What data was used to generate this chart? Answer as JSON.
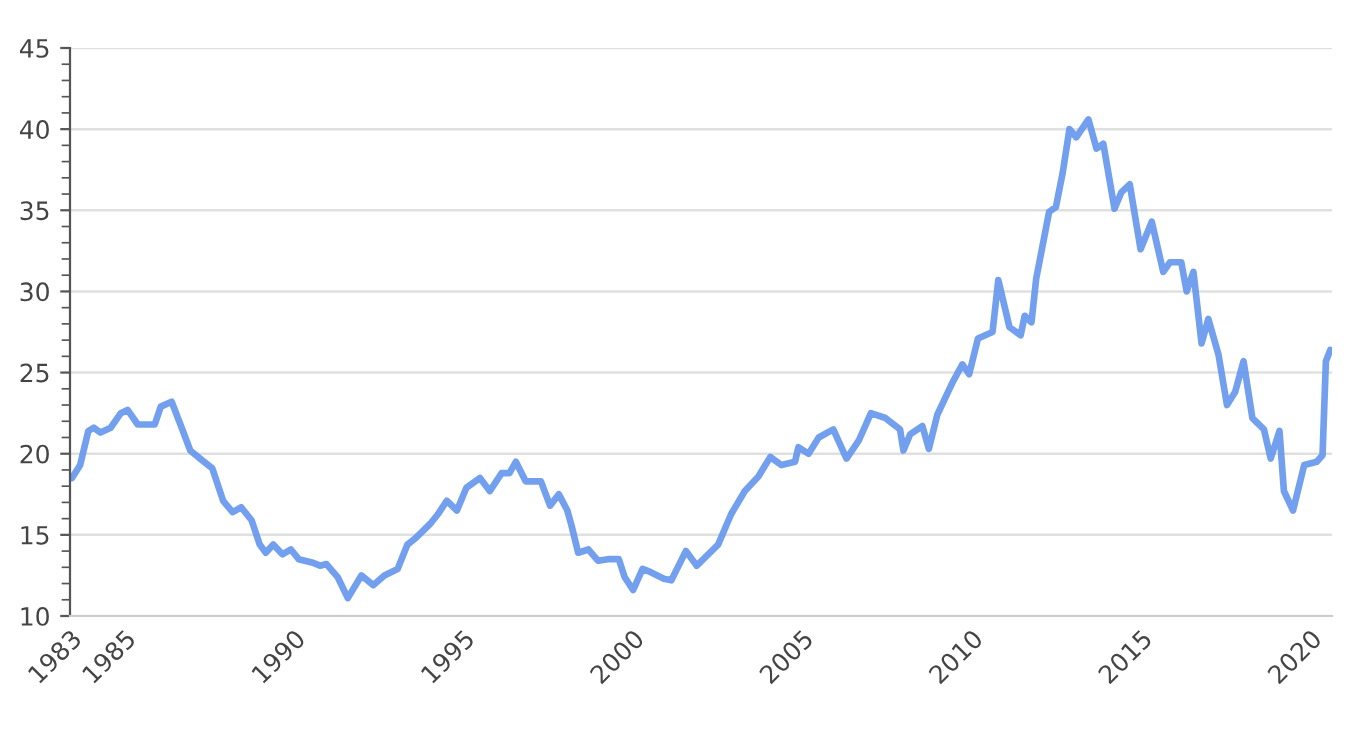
{
  "chart_data": {
    "type": "line",
    "x": [
      1983.46,
      1983.7,
      1983.94,
      1984.1,
      1984.3,
      1984.6,
      1984.9,
      1985.1,
      1985.4,
      1985.6,
      1985.9,
      1986.08,
      1986.4,
      1986.66,
      1986.95,
      1987.24,
      1987.6,
      1987.92,
      1988.2,
      1988.45,
      1988.76,
      1989.0,
      1989.18,
      1989.4,
      1989.67,
      1989.92,
      1990.15,
      1990.54,
      1990.78,
      1990.97,
      1991.3,
      1991.6,
      1992.0,
      1992.35,
      1992.68,
      1993.07,
      1993.36,
      1993.6,
      1994.04,
      1994.27,
      1994.52,
      1994.82,
      1995.1,
      1995.5,
      1995.79,
      1996.14,
      1996.37,
      1996.56,
      1996.85,
      1997.3,
      1997.57,
      1997.83,
      1998.08,
      1998.2,
      1998.4,
      1998.7,
      1998.99,
      1999.28,
      1999.6,
      1999.77,
      2000.02,
      2000.3,
      2000.54,
      2000.93,
      2001.15,
      2001.58,
      2001.9,
      2002.53,
      2002.92,
      2003.32,
      2003.72,
      2004.07,
      2004.4,
      2004.8,
      2004.9,
      2005.2,
      2005.5,
      2005.93,
      2006.32,
      2006.68,
      2007.04,
      2007.47,
      2007.9,
      2008.0,
      2008.2,
      2008.56,
      2008.75,
      2009.0,
      2009.45,
      2009.74,
      2009.94,
      2010.2,
      2010.63,
      2010.8,
      2011.13,
      2011.46,
      2011.58,
      2011.78,
      2011.92,
      2012.3,
      2012.5,
      2012.7,
      2012.9,
      2013.1,
      2013.46,
      2013.7,
      2013.9,
      2014.23,
      2014.43,
      2014.68,
      2015.0,
      2015.33,
      2015.67,
      2015.87,
      2016.2,
      2016.36,
      2016.56,
      2016.8,
      2017.0,
      2017.3,
      2017.55,
      2017.79,
      2018.04,
      2018.3,
      2018.64,
      2018.84,
      2019.1,
      2019.23,
      2019.5,
      2019.83,
      2020.2,
      2020.37,
      2020.47,
      2020.6
    ],
    "series": [
      {
        "color": "#6495ed",
        "values": [
          18.5,
          19.3,
          21.4,
          21.6,
          21.3,
          21.6,
          22.5,
          22.7,
          21.8,
          21.8,
          21.8,
          22.9,
          23.2,
          21.8,
          20.2,
          19.7,
          19.1,
          17.1,
          16.4,
          16.7,
          15.9,
          14.4,
          13.9,
          14.4,
          13.8,
          14.1,
          13.5,
          13.3,
          13.1,
          13.2,
          12.4,
          11.1,
          12.5,
          11.9,
          12.5,
          12.9,
          14.4,
          14.8,
          15.7,
          16.3,
          17.1,
          16.5,
          17.9,
          18.5,
          17.7,
          18.8,
          18.8,
          19.5,
          18.3,
          18.3,
          16.8,
          17.5,
          16.5,
          15.6,
          13.9,
          14.1,
          13.4,
          13.5,
          13.5,
          12.4,
          11.6,
          12.9,
          12.7,
          12.3,
          12.2,
          14.0,
          13.1,
          14.4,
          16.3,
          17.7,
          18.6,
          19.8,
          19.3,
          19.5,
          20.4,
          20.0,
          21.0,
          21.5,
          19.7,
          20.8,
          22.5,
          22.2,
          21.5,
          20.2,
          21.2,
          21.7,
          20.3,
          22.4,
          24.4,
          25.5,
          24.9,
          27.1,
          27.5,
          30.7,
          27.8,
          27.3,
          28.5,
          28.1,
          30.8,
          34.9,
          35.2,
          37.3,
          40.0,
          39.5,
          40.6,
          38.8,
          39.1,
          35.1,
          36.1,
          36.6,
          32.6,
          34.3,
          31.2,
          31.8,
          31.8,
          30.0,
          31.2,
          26.8,
          28.3,
          26.1,
          23.0,
          23.8,
          25.7,
          22.2,
          21.5,
          19.7,
          21.4,
          17.7,
          16.5,
          19.3,
          19.5,
          19.9,
          25.7,
          26.4
        ]
      }
    ],
    "xlim": [
      1983.4,
      2020.65
    ],
    "xticks": [
      {
        "value": 1983.4,
        "label": "1983"
      },
      1985,
      1990,
      1995,
      2000,
      2005,
      2010,
      2015,
      2020
    ],
    "ylim": [
      10,
      45
    ],
    "yticks": [
      10,
      15,
      20,
      25,
      30,
      35,
      40,
      45
    ],
    "grid": "y",
    "marker": "none",
    "line_style": "solid"
  }
}
